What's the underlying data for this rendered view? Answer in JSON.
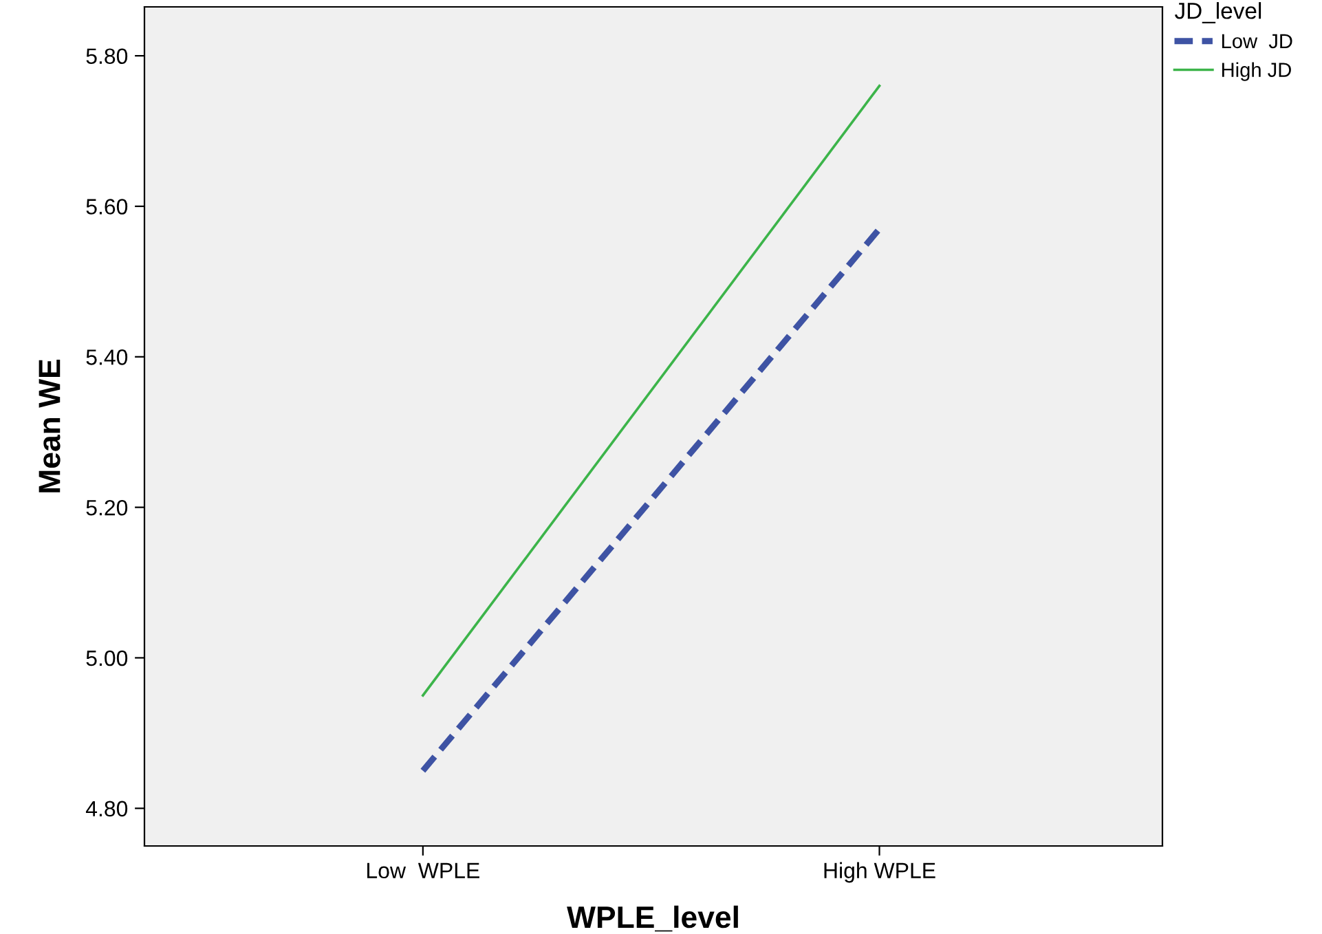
{
  "chart_data": {
    "type": "line",
    "xlabel": "WPLE_level",
    "ylabel": "Mean WE",
    "legend_title": "JD_level",
    "categories": [
      "Low  WPLE",
      "High WPLE"
    ],
    "series": [
      {
        "name": "Low  JD",
        "color": "#3e53a4",
        "line_style": "dashed",
        "values": [
          4.85,
          5.57
        ]
      },
      {
        "name": "High JD",
        "color": "#3cb44a",
        "line_style": "solid",
        "values": [
          4.95,
          5.76
        ]
      }
    ],
    "ylim": [
      4.75,
      5.865
    ],
    "yticks": [
      {
        "value": 4.8,
        "label": "4.80"
      },
      {
        "value": 5.0,
        "label": "5.00"
      },
      {
        "value": 5.2,
        "label": "5.20"
      },
      {
        "value": 5.4,
        "label": "5.40"
      },
      {
        "value": 5.6,
        "label": "5.60"
      },
      {
        "value": 5.8,
        "label": "5.80"
      }
    ],
    "grid": false,
    "legend": "top right",
    "marker": "none"
  }
}
